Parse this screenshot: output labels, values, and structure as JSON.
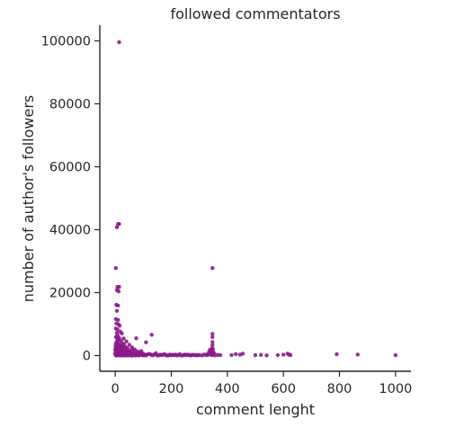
{
  "chart_data": {
    "type": "scatter",
    "title": "followed commentators",
    "xlabel": "comment lenght",
    "ylabel": "number of author's followers",
    "xlim": [
      -55,
      1055
    ],
    "ylim": [
      -5000,
      105000
    ],
    "xticks": [
      0,
      200,
      400,
      600,
      800,
      1000
    ],
    "yticks": [
      0,
      20000,
      40000,
      60000,
      80000,
      100000
    ],
    "grid": false,
    "marker_color": "#8b1a8b",
    "points": [
      [
        14,
        99600
      ],
      [
        10,
        41800
      ],
      [
        14,
        41800
      ],
      [
        6,
        40800
      ],
      [
        2,
        27800
      ],
      [
        347,
        27800
      ],
      [
        8,
        21800
      ],
      [
        14,
        21800
      ],
      [
        6,
        20800
      ],
      [
        12,
        20400
      ],
      [
        4,
        16100
      ],
      [
        10,
        15900
      ],
      [
        6,
        14200
      ],
      [
        2,
        11600
      ],
      [
        10,
        11300
      ],
      [
        4,
        10200
      ],
      [
        12,
        9900
      ],
      [
        16,
        9500
      ],
      [
        2,
        8600
      ],
      [
        8,
        8300
      ],
      [
        18,
        7600
      ],
      [
        6,
        7200
      ],
      [
        24,
        7000
      ],
      [
        347,
        6900
      ],
      [
        130,
        6600
      ],
      [
        347,
        5900
      ],
      [
        4,
        6000
      ],
      [
        14,
        5600
      ],
      [
        30,
        5400
      ],
      [
        75,
        5500
      ],
      [
        10,
        4900
      ],
      [
        20,
        4700
      ],
      [
        40,
        4500
      ],
      [
        347,
        4300
      ],
      [
        110,
        4200
      ],
      [
        8,
        4000
      ],
      [
        26,
        3900
      ],
      [
        2,
        3700
      ],
      [
        16,
        3500
      ],
      [
        50,
        3400
      ],
      [
        347,
        3300
      ],
      [
        6,
        3200
      ],
      [
        22,
        3000
      ],
      [
        35,
        2800
      ],
      [
        12,
        2700
      ],
      [
        60,
        2600
      ],
      [
        4,
        2500
      ],
      [
        28,
        2400
      ],
      [
        345,
        2300
      ],
      [
        18,
        2200
      ],
      [
        45,
        2100
      ],
      [
        8,
        2000
      ],
      [
        70,
        1900
      ],
      [
        14,
        1800
      ],
      [
        32,
        1700
      ],
      [
        2,
        1600
      ],
      [
        24,
        1500
      ],
      [
        55,
        1450
      ],
      [
        10,
        1400
      ],
      [
        40,
        1300
      ],
      [
        80,
        1250
      ],
      [
        6,
        1200
      ],
      [
        20,
        1100
      ],
      [
        348,
        1050
      ],
      [
        16,
        1000
      ],
      [
        90,
        950
      ],
      [
        30,
        900
      ],
      [
        4,
        850
      ],
      [
        48,
        800
      ],
      [
        12,
        750
      ],
      [
        65,
        700
      ],
      [
        26,
        650
      ],
      [
        100,
        600
      ],
      [
        8,
        560
      ],
      [
        36,
        520
      ],
      [
        120,
        500
      ],
      [
        2,
        460
      ],
      [
        18,
        430
      ],
      [
        58,
        400
      ],
      [
        140,
        380
      ],
      [
        22,
        350
      ],
      [
        75,
        330
      ],
      [
        10,
        300
      ],
      [
        44,
        280
      ],
      [
        160,
        260
      ],
      [
        6,
        240
      ],
      [
        30,
        220
      ],
      [
        95,
        200
      ],
      [
        14,
        180
      ],
      [
        52,
        160
      ],
      [
        180,
        150
      ],
      [
        4,
        130
      ],
      [
        24,
        110
      ],
      [
        70,
        100
      ],
      [
        200,
        90
      ],
      [
        16,
        80
      ],
      [
        40,
        70
      ],
      [
        110,
        60
      ],
      [
        8,
        50
      ],
      [
        34,
        40
      ],
      [
        150,
        30
      ],
      [
        2,
        20
      ],
      [
        60,
        10
      ],
      [
        85,
        5
      ],
      [
        210,
        100
      ],
      [
        225,
        180
      ],
      [
        240,
        60
      ],
      [
        255,
        140
      ],
      [
        270,
        40
      ],
      [
        285,
        200
      ],
      [
        300,
        80
      ],
      [
        215,
        300
      ],
      [
        235,
        20
      ],
      [
        260,
        260
      ],
      [
        280,
        120
      ],
      [
        330,
        500
      ],
      [
        335,
        1200
      ],
      [
        340,
        800
      ],
      [
        342,
        300
      ],
      [
        344,
        150
      ],
      [
        346,
        700
      ],
      [
        350,
        400
      ],
      [
        352,
        900
      ],
      [
        355,
        50
      ],
      [
        338,
        1800
      ],
      [
        349,
        2000
      ],
      [
        332,
        250
      ],
      [
        325,
        100
      ],
      [
        318,
        350
      ],
      [
        365,
        200
      ],
      [
        375,
        100
      ],
      [
        415,
        150
      ],
      [
        430,
        450
      ],
      [
        445,
        250
      ],
      [
        455,
        600
      ],
      [
        500,
        100
      ],
      [
        520,
        200
      ],
      [
        540,
        50
      ],
      [
        580,
        150
      ],
      [
        600,
        250
      ],
      [
        615,
        600
      ],
      [
        620,
        300
      ],
      [
        625,
        150
      ],
      [
        790,
        400
      ],
      [
        865,
        300
      ],
      [
        1000,
        100
      ],
      [
        170,
        220
      ],
      [
        190,
        70
      ],
      [
        195,
        310
      ],
      [
        130,
        140
      ],
      [
        125,
        400
      ],
      [
        105,
        260
      ],
      [
        98,
        90
      ],
      [
        88,
        620
      ],
      [
        78,
        150
      ],
      [
        68,
        820
      ],
      [
        62,
        330
      ],
      [
        56,
        1100
      ],
      [
        46,
        210
      ],
      [
        42,
        950
      ],
      [
        38,
        1500
      ],
      [
        33,
        600
      ],
      [
        27,
        2600
      ],
      [
        21,
        1350
      ],
      [
        17,
        3100
      ],
      [
        13,
        2300
      ],
      [
        11,
        5100
      ],
      [
        9,
        6400
      ],
      [
        7,
        3800
      ],
      [
        5,
        4400
      ],
      [
        3,
        5800
      ],
      [
        1,
        2900
      ],
      [
        0,
        700
      ],
      [
        0,
        1900
      ],
      [
        1,
        400
      ],
      [
        3,
        150
      ],
      [
        5,
        60
      ],
      [
        7,
        1300
      ],
      [
        9,
        250
      ],
      [
        11,
        900
      ],
      [
        13,
        120
      ],
      [
        15,
        520
      ],
      [
        19,
        80
      ],
      [
        23,
        1700
      ],
      [
        25,
        30
      ],
      [
        29,
        560
      ],
      [
        31,
        3600
      ],
      [
        37,
        180
      ],
      [
        41,
        2400
      ],
      [
        47,
        60
      ],
      [
        51,
        1200
      ],
      [
        57,
        40
      ],
      [
        63,
        2000
      ],
      [
        67,
        120
      ],
      [
        73,
        30
      ],
      [
        79,
        860
      ],
      [
        83,
        240
      ],
      [
        93,
        1400
      ],
      [
        103,
        70
      ],
      [
        115,
        380
      ],
      [
        135,
        90
      ],
      [
        145,
        720
      ],
      [
        155,
        50
      ],
      [
        165,
        160
      ],
      [
        175,
        460
      ],
      [
        185,
        30
      ],
      [
        205,
        240
      ],
      [
        220,
        60
      ],
      [
        230,
        420
      ],
      [
        245,
        130
      ],
      [
        250,
        320
      ],
      [
        265,
        80
      ],
      [
        275,
        220
      ],
      [
        290,
        30
      ],
      [
        295,
        160
      ],
      [
        310,
        60
      ]
    ]
  }
}
